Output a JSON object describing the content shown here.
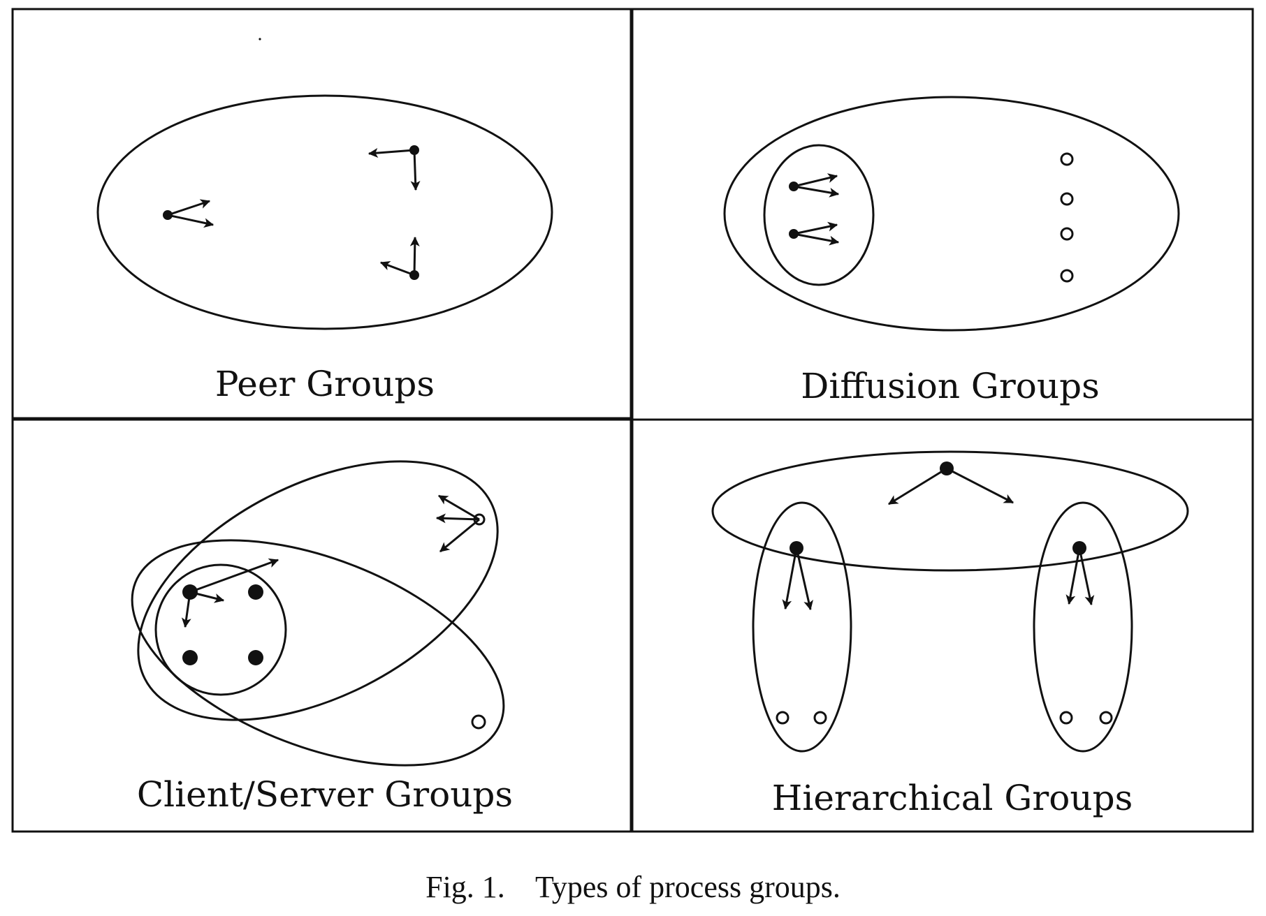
{
  "figure": {
    "panels": [
      {
        "id": "peer",
        "label": "Peer Groups"
      },
      {
        "id": "diffusion",
        "label": "Diffusion Groups"
      },
      {
        "id": "client-server",
        "label": "Client/Server Groups"
      },
      {
        "id": "hierarchical",
        "label": "Hierarchical Groups"
      }
    ],
    "caption": {
      "number": "Fig. 1.",
      "text": "Types of process groups."
    }
  },
  "colors": {
    "ink": "#111111",
    "background": "#ffffff"
  }
}
